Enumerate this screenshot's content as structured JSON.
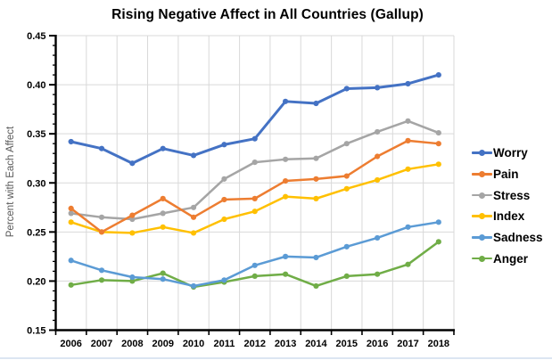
{
  "chart_data": {
    "type": "line",
    "title": "Rising Negative Affect in All Countries (Gallup)",
    "ylabel": "Percent with Each Affect",
    "xlabel": "",
    "x": [
      "2006",
      "2007",
      "2008",
      "2009",
      "2010",
      "2011",
      "2012",
      "2013",
      "2014",
      "2015",
      "2016",
      "2017",
      "2018"
    ],
    "series": [
      {
        "name": "Worry",
        "color": "#4472C4",
        "values": [
          0.342,
          0.335,
          0.32,
          0.335,
          0.328,
          0.339,
          0.345,
          0.383,
          0.381,
          0.396,
          0.397,
          0.401,
          0.41
        ]
      },
      {
        "name": "Pain",
        "color": "#ED7D31",
        "values": [
          0.274,
          0.25,
          0.267,
          0.284,
          0.265,
          0.283,
          0.284,
          0.302,
          0.304,
          0.307,
          0.327,
          0.343,
          0.34
        ]
      },
      {
        "name": "Stress",
        "color": "#A5A5A5",
        "values": [
          0.269,
          0.265,
          0.263,
          0.269,
          0.275,
          0.304,
          0.321,
          0.324,
          0.325,
          0.34,
          0.352,
          0.363,
          0.351
        ]
      },
      {
        "name": "Index",
        "color": "#FFC000",
        "values": [
          0.26,
          0.25,
          0.249,
          0.255,
          0.249,
          0.263,
          0.271,
          0.286,
          0.284,
          0.294,
          0.303,
          0.314,
          0.319
        ]
      },
      {
        "name": "Sadness",
        "color": "#5B9BD5",
        "values": [
          0.221,
          0.211,
          0.204,
          0.202,
          0.195,
          0.201,
          0.216,
          0.225,
          0.224,
          0.235,
          0.244,
          0.255,
          0.26
        ]
      },
      {
        "name": "Anger",
        "color": "#70AD47",
        "values": [
          0.196,
          0.201,
          0.2,
          0.208,
          0.194,
          0.199,
          0.205,
          0.207,
          0.195,
          0.205,
          0.207,
          0.217,
          0.24
        ]
      }
    ],
    "ylim": [
      0.15,
      0.45
    ],
    "y_major_step": 0.05,
    "y_minor_step": 0.01,
    "y_tick_decimals": 2,
    "grid": true,
    "legend_position": "right",
    "colors": {
      "axis": "#000000",
      "gridline": "#d9d9d9",
      "tick_text": "#000000",
      "y_axis_title_text": "#595959",
      "page_bottom_border": "#dce6f2"
    }
  }
}
